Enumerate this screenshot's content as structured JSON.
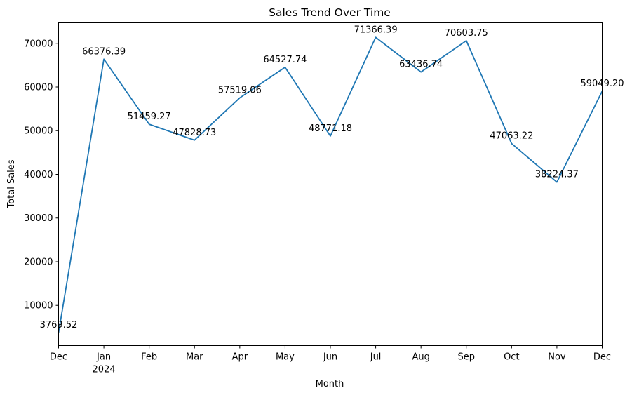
{
  "chart_data": {
    "type": "line",
    "title": "Sales Trend Over Time",
    "xlabel": "Month",
    "ylabel": "Total Sales",
    "x_ticks": [
      "Dec",
      "Jan",
      "Feb",
      "Mar",
      "Apr",
      "May",
      "Jun",
      "Jul",
      "Aug",
      "Sep",
      "Oct",
      "Nov",
      "Dec"
    ],
    "x_tick_sub": {
      "1": "2024"
    },
    "y_ticks": [
      10000,
      20000,
      30000,
      40000,
      50000,
      60000,
      70000
    ],
    "ylim": [
      800,
      74700
    ],
    "grid": false,
    "series": [
      {
        "color": "#1f77b4",
        "x": [
          "2023-12",
          "2024-01",
          "2024-02",
          "2024-03",
          "2024-04",
          "2024-05",
          "2024-06",
          "2024-07",
          "2024-08",
          "2024-09",
          "2024-10",
          "2024-11",
          "2024-12"
        ],
        "values": [
          3769.52,
          66376.39,
          51459.27,
          47828.73,
          57519.06,
          64527.74,
          48771.18,
          71366.39,
          63436.74,
          70603.75,
          47063.22,
          38224.37,
          59049.2
        ],
        "labels": [
          "3769.52",
          "66376.39",
          "51459.27",
          "47828.73",
          "57519.06",
          "64527.74",
          "48771.18",
          "71366.39",
          "63436.74",
          "70603.75",
          "47063.22",
          "38224.37",
          "59049.20"
        ]
      }
    ]
  }
}
